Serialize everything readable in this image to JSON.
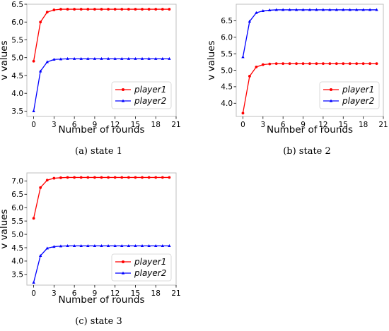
{
  "chart_data": [
    {
      "type": "line",
      "caption": "(a)  state 1",
      "xlabel": "Number of rounds",
      "ylabel": "v values",
      "xlim": [
        -1,
        21
      ],
      "ylim": [
        3.35,
        6.5
      ],
      "xticks": [
        0,
        3,
        6,
        9,
        12,
        15,
        18,
        21
      ],
      "yticks": [
        3.5,
        4.0,
        4.5,
        5.0,
        5.5,
        6.0,
        6.5
      ],
      "legend": "lower-right",
      "grid": false,
      "x": [
        0,
        1,
        2,
        3,
        4,
        5,
        6,
        7,
        8,
        9,
        10,
        11,
        12,
        13,
        14,
        15,
        16,
        17,
        18,
        19,
        20
      ],
      "series": [
        {
          "name": "player1",
          "color": "#ff0000",
          "marker": "circle",
          "values": [
            4.9,
            6.0,
            6.28,
            6.34,
            6.36,
            6.36,
            6.36,
            6.36,
            6.36,
            6.36,
            6.36,
            6.36,
            6.36,
            6.36,
            6.36,
            6.36,
            6.36,
            6.36,
            6.36,
            6.36,
            6.36
          ]
        },
        {
          "name": "player2",
          "color": "#0000ff",
          "marker": "triangle",
          "values": [
            3.5,
            4.62,
            4.88,
            4.95,
            4.96,
            4.97,
            4.97,
            4.97,
            4.97,
            4.97,
            4.97,
            4.97,
            4.97,
            4.97,
            4.97,
            4.97,
            4.97,
            4.97,
            4.97,
            4.97,
            4.97
          ]
        }
      ]
    },
    {
      "type": "line",
      "caption": "(b)  state 2",
      "xlabel": "Number of rounds",
      "ylabel": "v values",
      "xlim": [
        -1,
        21
      ],
      "ylim": [
        3.6,
        7.0
      ],
      "xticks": [
        0,
        3,
        6,
        9,
        12,
        15,
        18,
        21
      ],
      "yticks": [
        4.0,
        4.5,
        5.0,
        5.5,
        6.0,
        6.5
      ],
      "legend": "lower-right",
      "grid": false,
      "x": [
        0,
        1,
        2,
        3,
        4,
        5,
        6,
        7,
        8,
        9,
        10,
        11,
        12,
        13,
        14,
        15,
        16,
        17,
        18,
        19,
        20
      ],
      "series": [
        {
          "name": "player1",
          "color": "#ff0000",
          "marker": "circle",
          "values": [
            3.7,
            4.82,
            5.1,
            5.17,
            5.19,
            5.2,
            5.2,
            5.2,
            5.2,
            5.2,
            5.2,
            5.2,
            5.2,
            5.2,
            5.2,
            5.2,
            5.2,
            5.2,
            5.2,
            5.2,
            5.2
          ]
        },
        {
          "name": "player2",
          "color": "#0000ff",
          "marker": "triangle",
          "values": [
            5.4,
            6.48,
            6.74,
            6.8,
            6.82,
            6.83,
            6.83,
            6.83,
            6.83,
            6.83,
            6.83,
            6.83,
            6.83,
            6.83,
            6.83,
            6.83,
            6.83,
            6.83,
            6.83,
            6.83,
            6.83
          ]
        }
      ]
    },
    {
      "type": "line",
      "caption": "(c)  state 3",
      "xlabel": "Number of rounds",
      "ylabel": "v values",
      "xlim": [
        -1,
        21
      ],
      "ylim": [
        3.1,
        7.3
      ],
      "xticks": [
        0,
        3,
        6,
        9,
        12,
        15,
        18,
        21
      ],
      "yticks": [
        3.5,
        4.0,
        4.5,
        5.0,
        5.5,
        6.0,
        6.5,
        7.0
      ],
      "legend": "lower-right",
      "grid": false,
      "x": [
        0,
        1,
        2,
        3,
        4,
        5,
        6,
        7,
        8,
        9,
        10,
        11,
        12,
        13,
        14,
        15,
        16,
        17,
        18,
        19,
        20
      ],
      "series": [
        {
          "name": "player1",
          "color": "#ff0000",
          "marker": "circle",
          "values": [
            5.6,
            6.75,
            7.03,
            7.1,
            7.12,
            7.13,
            7.13,
            7.13,
            7.13,
            7.13,
            7.13,
            7.13,
            7.13,
            7.13,
            7.13,
            7.13,
            7.13,
            7.13,
            7.13,
            7.13,
            7.13
          ]
        },
        {
          "name": "player2",
          "color": "#0000ff",
          "marker": "triangle",
          "values": [
            3.2,
            4.2,
            4.48,
            4.54,
            4.56,
            4.57,
            4.57,
            4.57,
            4.57,
            4.57,
            4.57,
            4.57,
            4.57,
            4.57,
            4.57,
            4.57,
            4.57,
            4.57,
            4.57,
            4.57,
            4.57
          ]
        }
      ]
    }
  ]
}
